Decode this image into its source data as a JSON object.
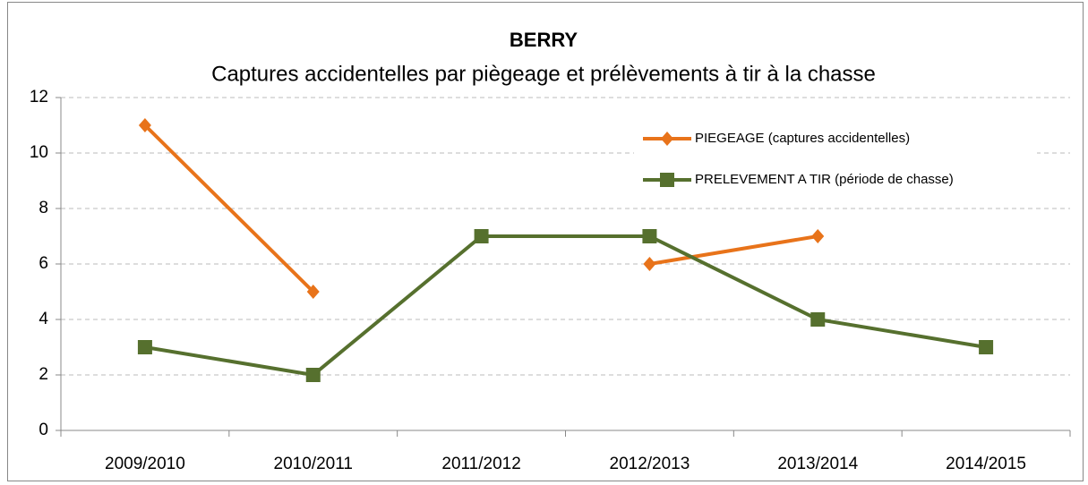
{
  "chart_data": {
    "type": "line",
    "title": "BERRY",
    "subtitle": "Captures accidentelles par piègeage et prélèvements à tir à la chasse",
    "categories": [
      "2009/2010",
      "2010/2011",
      "2011/2012",
      "2012/2013",
      "2013/2014",
      "2014/2015"
    ],
    "series": [
      {
        "name": "PIEGEAGE (captures accidentelles)",
        "color": "#E8731A",
        "marker": "diamond",
        "values": [
          11,
          5,
          null,
          6,
          7,
          null
        ]
      },
      {
        "name": "PRELEVEMENT A TIR (période de chasse)",
        "color": "#56702E",
        "marker": "square",
        "values": [
          3,
          2,
          7,
          7,
          4,
          3
        ]
      }
    ],
    "ylim": [
      0,
      12
    ],
    "yticks": [
      0,
      2,
      4,
      6,
      8,
      10,
      12
    ],
    "grid": true,
    "legend": "upper right"
  }
}
